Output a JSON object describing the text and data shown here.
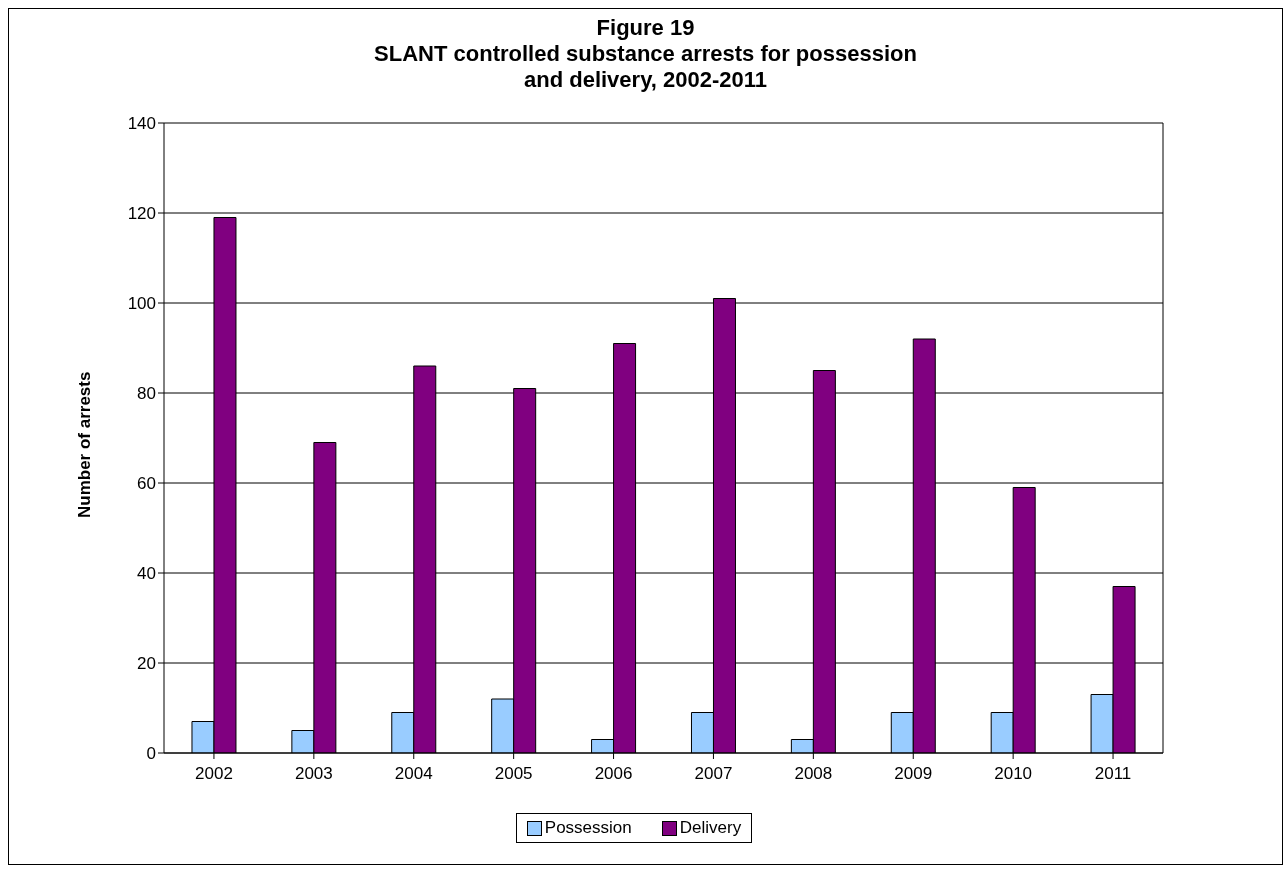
{
  "chart_data": {
    "type": "bar",
    "title": "Figure 19\nSLANT controlled substance arrests for possession\nand delivery, 2002-2011",
    "ylabel": "Number of arrests",
    "categories": [
      "2002",
      "2003",
      "2004",
      "2005",
      "2006",
      "2007",
      "2008",
      "2009",
      "2010",
      "2011"
    ],
    "series": [
      {
        "name": "Possession",
        "color": "#99ccff",
        "values": [
          7,
          5,
          9,
          12,
          3,
          9,
          3,
          9,
          9,
          13
        ]
      },
      {
        "name": "Delivery",
        "color": "#800080",
        "values": [
          119,
          69,
          86,
          81,
          91,
          101,
          85,
          92,
          59,
          37
        ]
      }
    ],
    "ylim": [
      0,
      140
    ],
    "yticks": [
      0,
      20,
      40,
      60,
      80,
      100,
      120,
      140
    ],
    "grid": "y",
    "legend": "bottom"
  }
}
